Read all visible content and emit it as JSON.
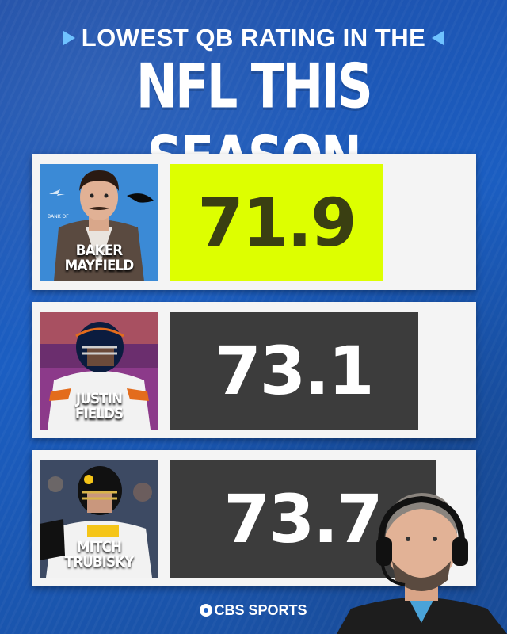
{
  "header": {
    "subtitle": "LOWEST QB RATING IN THE",
    "title": "NFL THIS SEASON"
  },
  "chart_data": {
    "type": "bar",
    "title": "LOWEST QB RATING IN THE NFL THIS SEASON",
    "categories": [
      "BAKER MAYFIELD",
      "JUSTIN FIELDS",
      "MITCH TRUBISKY"
    ],
    "values": [
      71.9,
      73.1,
      73.7
    ],
    "xlabel": "",
    "ylabel": "",
    "value_labels": [
      "71.9",
      "73.1",
      "73.7"
    ]
  },
  "players": [
    {
      "name_line1": "BAKER",
      "name_line2": "MAYFIELD",
      "rating": "71.9",
      "bar_color": "#ddff00",
      "text_color": "#3a3f12",
      "jersey": "#5a4a40",
      "helmet": "",
      "photo_text": "BANK OF"
    },
    {
      "name_line1": "JUSTIN",
      "name_line2": "FIELDS",
      "rating": "73.1",
      "bar_color": "#3c3c3c",
      "text_color": "#ffffff",
      "jersey": "#ffffff",
      "helmet": "#0b1c3f"
    },
    {
      "name_line1": "MITCH",
      "name_line2": "TRUBISKY",
      "rating": "73.7",
      "bar_color": "#3c3c3c",
      "text_color": "#ffffff",
      "jersey": "#ffffff",
      "helmet": "#111111"
    }
  ],
  "footer": {
    "brand": "CBS SPORTS"
  },
  "colors": {
    "background": "#1b5ec2",
    "accent_arrow": "#6fc2ff",
    "highlight_bar": "#ddff00",
    "dark_bar": "#3c3c3c"
  }
}
